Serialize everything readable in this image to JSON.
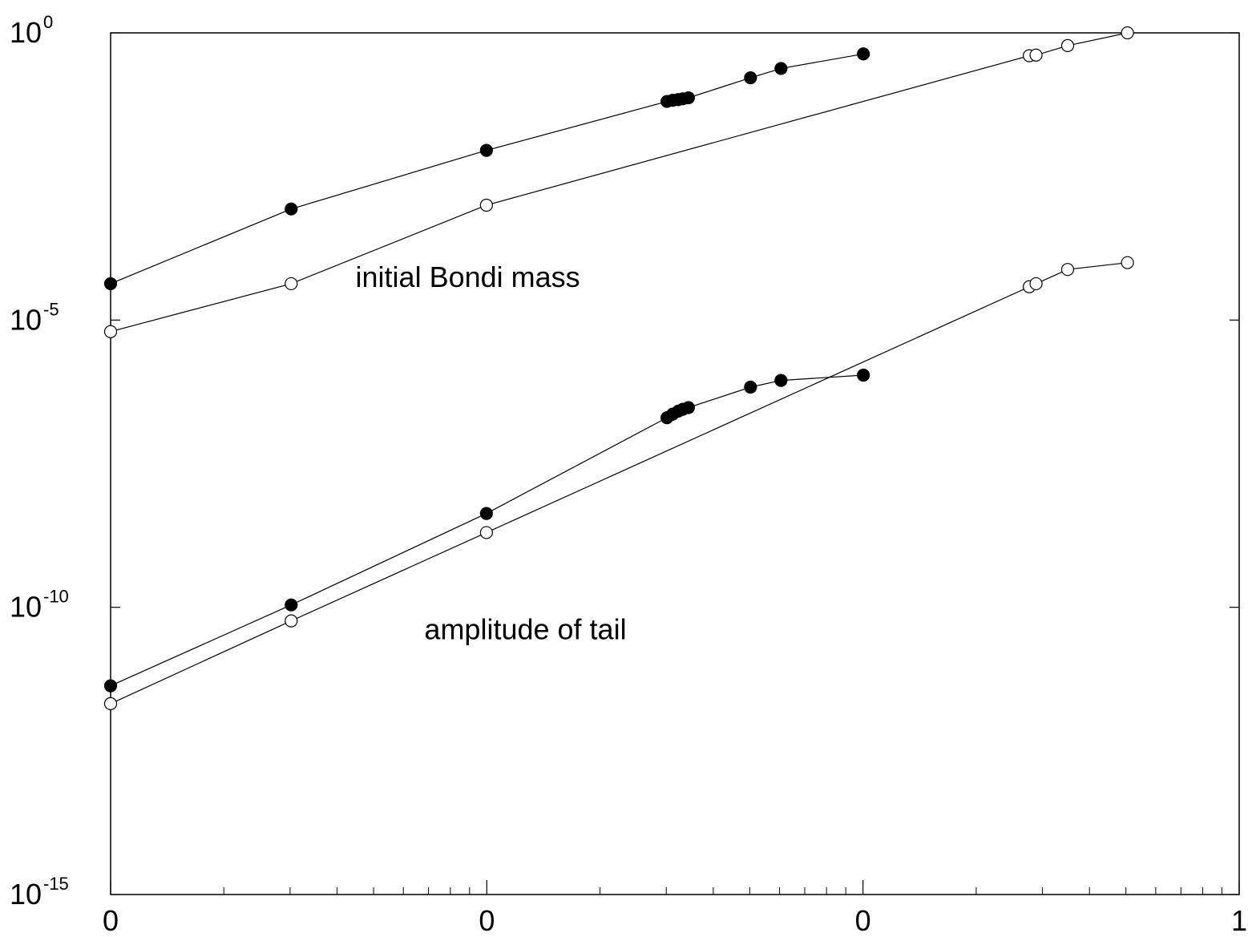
{
  "chart_data": {
    "type": "scatter",
    "yscale": "log",
    "ylim": [
      1e-15,
      1
    ],
    "xlim": [
      0,
      1
    ],
    "grid": false,
    "title": "",
    "xlabel": "",
    "ylabel": "",
    "x_tick_labels": [
      "0",
      "0",
      "0",
      "1"
    ],
    "y_ticks": [
      {
        "base": "10",
        "exp": "0",
        "value": 1
      },
      {
        "base": "10",
        "exp": "-5",
        "value": 1e-05
      },
      {
        "base": "10",
        "exp": "-10",
        "value": 1e-10
      },
      {
        "base": "10",
        "exp": "-15",
        "value": 1e-15
      }
    ],
    "annotations": [
      {
        "text": "initial Bondi mass",
        "x": 0.217,
        "y": 3.8e-05
      },
      {
        "text": "amplitude of tail",
        "x": 0.278,
        "y": 2.8e-11
      }
    ],
    "series": [
      {
        "marker": "filled-circle",
        "x": [
          0.0,
          0.16,
          0.333,
          0.493,
          0.498,
          0.503,
          0.507,
          0.512,
          0.567,
          0.594,
          0.667
        ],
        "y": [
          4.3e-05,
          0.00086,
          0.009,
          0.064,
          0.067,
          0.069,
          0.071,
          0.074,
          0.165,
          0.24,
          0.43
        ]
      },
      {
        "marker": "open-circle",
        "x": [
          0.0,
          0.16,
          0.333,
          0.814,
          0.82,
          0.848,
          0.901
        ],
        "y": [
          6.3e-06,
          4.3e-05,
          0.001,
          0.4,
          0.41,
          0.6,
          1.0
        ]
      },
      {
        "marker": "filled-circle",
        "x": [
          0.0,
          0.16,
          0.333,
          0.493,
          0.498,
          0.503,
          0.507,
          0.512,
          0.567,
          0.594,
          0.667
        ],
        "y": [
          4.3e-12,
          1.1e-10,
          4.3e-09,
          2e-07,
          2.3e-07,
          2.6e-07,
          2.8e-07,
          3e-07,
          6.8e-07,
          8.9e-07,
          1.1e-06
        ]
      },
      {
        "marker": "open-circle",
        "x": [
          0.0,
          0.16,
          0.333,
          0.814,
          0.82,
          0.848,
          0.901
        ],
        "y": [
          2.1e-12,
          5.8e-11,
          2e-09,
          3.8e-05,
          4.3e-05,
          7.6e-05,
          0.0001
        ]
      }
    ]
  }
}
